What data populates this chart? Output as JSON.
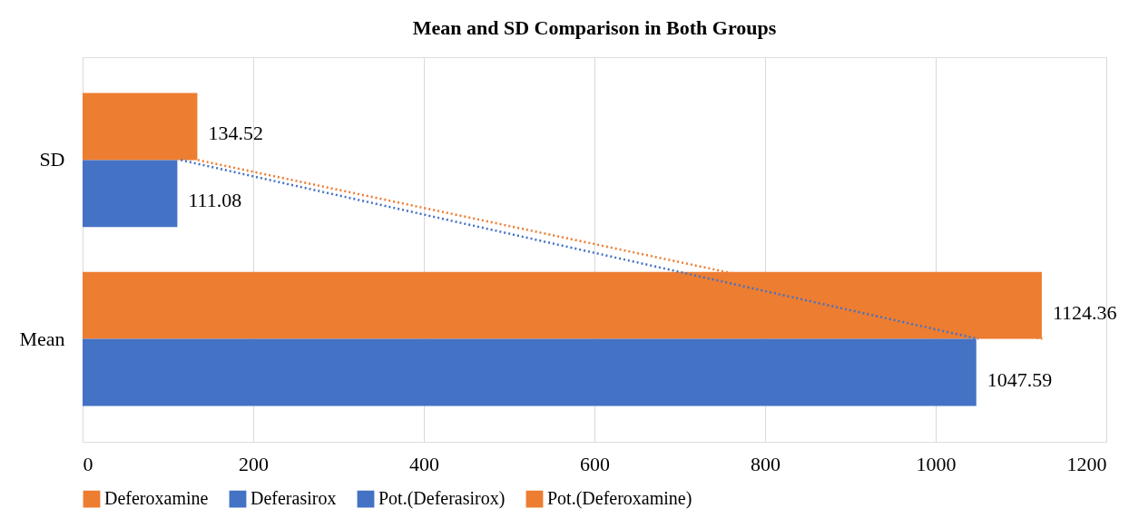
{
  "chart_data": {
    "type": "bar",
    "orientation": "horizontal",
    "title": "Mean and SD Comparison in Both Groups",
    "categories": [
      "SD",
      "Mean"
    ],
    "series": [
      {
        "name": "Deferoxamine",
        "color": "#ed7d31",
        "values": [
          134.52,
          1124.36
        ]
      },
      {
        "name": "Deferasirox",
        "color": "#4472c4",
        "values": [
          111.08,
          1047.59
        ]
      },
      {
        "name": "Pot.(Deferasirox)",
        "type": "line",
        "line_style": "dotted",
        "color": "#4472c4",
        "values": [
          115,
          1050
        ],
        "value_labels": [
          null,
          null
        ]
      },
      {
        "name": "Pot.(Deferoxamine)",
        "type": "line",
        "line_style": "dotted",
        "color": "#ed7d31",
        "values": [
          135,
          1125
        ],
        "value_labels": [
          null,
          null
        ]
      }
    ],
    "xlim": [
      0,
      1200
    ],
    "xticks": [
      0,
      200,
      400,
      600,
      800,
      1000,
      1200
    ],
    "grid": "x",
    "legend": "bottom",
    "data_labels": true
  }
}
